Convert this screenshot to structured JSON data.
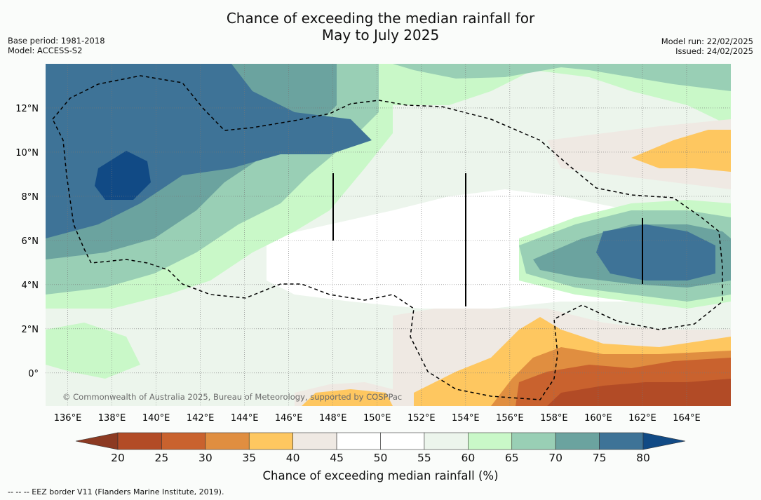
{
  "title_line1": "Chance of exceeding the median rainfall for",
  "title_line2": "May to July 2025",
  "meta_left": [
    "Base period: 1981-2018",
    "Model: ACCESS-S2"
  ],
  "meta_right": [
    "Model run: 22/02/2025",
    "Issued: 24/02/2025"
  ],
  "map": {
    "lon_range": [
      135,
      166
    ],
    "lat_range": [
      -1.5,
      14
    ],
    "lon_ticks": [
      "136°E",
      "138°E",
      "140°E",
      "142°E",
      "144°E",
      "146°E",
      "148°E",
      "150°E",
      "152°E",
      "154°E",
      "156°E",
      "158°E",
      "160°E",
      "162°E",
      "164°E"
    ],
    "lat_ticks": [
      "0°",
      "2°N",
      "4°N",
      "6°N",
      "8°N",
      "10°N",
      "12°N"
    ],
    "copyright": "© Commonwealth of Australia 2025, Bureau of Meteorology, supported by COSPPac"
  },
  "colorbar": {
    "ticks": [
      "20",
      "25",
      "30",
      "35",
      "40",
      "45",
      "50",
      "55",
      "60",
      "65",
      "70",
      "75",
      "80"
    ],
    "colors": [
      "#b24b26",
      "#c9622e",
      "#e08e40",
      "#fec760",
      "#efe9e3",
      "#ffffff",
      "#ffffff",
      "#ecf5ec",
      "#c9f8c8",
      "#99cfb5",
      "#6ba39f",
      "#3e7397"
    ],
    "under_color": "#8c3a22",
    "over_color": "#114a85",
    "label": "Chance of exceeding median rainfall (%)"
  },
  "footer": "--  --  -- EEZ border V11 (Flanders Marine Institute, 2019)."
}
